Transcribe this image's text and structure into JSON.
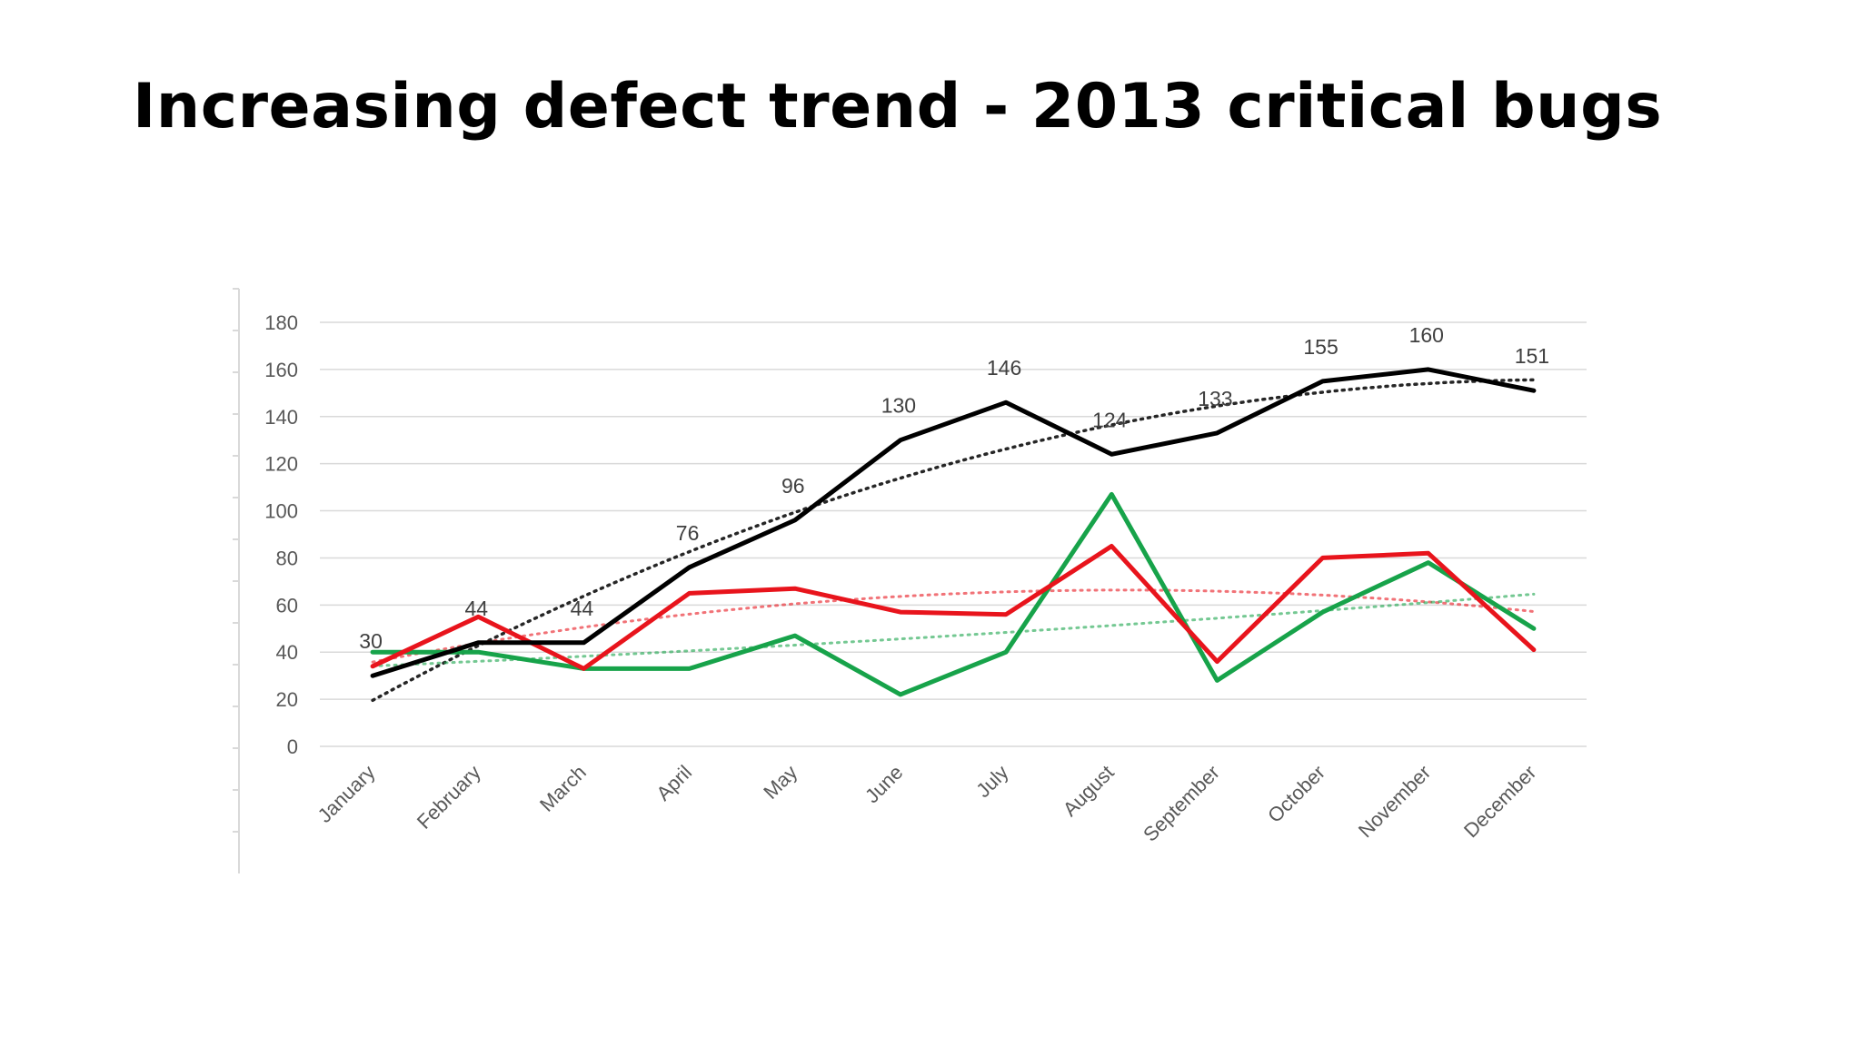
{
  "slide": {
    "title": "Increasing defect trend - 2013 critical bugs"
  },
  "chart_data": {
    "type": "line",
    "title": "",
    "xlabel": "",
    "ylabel": "",
    "ylim": [
      0,
      180
    ],
    "y_ticks": [
      0,
      20,
      40,
      60,
      80,
      100,
      120,
      140,
      160,
      180
    ],
    "grid": true,
    "legend": "none",
    "categories": [
      "January",
      "February",
      "March",
      "April",
      "May",
      "June",
      "July",
      "August",
      "September",
      "October",
      "November",
      "December"
    ],
    "series": [
      {
        "color": "#000000",
        "values": [
          30,
          44,
          44,
          76,
          96,
          130,
          146,
          124,
          133,
          155,
          160,
          151
        ],
        "data_labels": [
          "30",
          "44",
          "44",
          "76",
          "96",
          "130",
          "146",
          "124",
          "133",
          "155",
          "160",
          "151"
        ],
        "trendline": true
      },
      {
        "color": "#e8141c",
        "values": [
          34,
          55,
          33,
          65,
          67,
          57,
          56,
          85,
          36,
          80,
          82,
          41
        ],
        "trendline": true
      },
      {
        "color": "#17a34a",
        "values": [
          40,
          40,
          33,
          33,
          47,
          22,
          40,
          107,
          28,
          57,
          78,
          50
        ],
        "trendline": true
      }
    ]
  }
}
